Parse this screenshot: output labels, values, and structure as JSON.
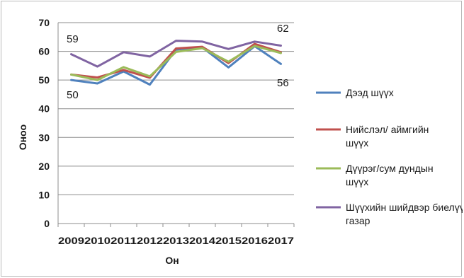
{
  "chart_data": {
    "type": "line",
    "title": "",
    "xlabel": "Он",
    "ylabel": "Оноо",
    "categories": [
      "2009",
      "2010",
      "2011",
      "2012",
      "2013",
      "2014",
      "2015",
      "2016",
      "2017"
    ],
    "ylim": [
      0,
      70
    ],
    "yticks": [
      "0",
      "10",
      "20",
      "30",
      "40",
      "50",
      "60",
      "70"
    ],
    "grid": true,
    "legend_position": "right",
    "series": [
      {
        "name": "Дээд шүүх",
        "color": "#4f81bd",
        "values": [
          50,
          48.8,
          53,
          48.4,
          60.6,
          61.4,
          54.4,
          61.8,
          55.6
        ]
      },
      {
        "name": "Нийслэл/ аймгийн шүүх",
        "color": "#c0504d",
        "values": [
          51.9,
          50.9,
          53.5,
          50.8,
          61,
          61.6,
          55.9,
          62.6,
          59.7
        ]
      },
      {
        "name": "Дүүрэг/сум дундын шүүх",
        "color": "#9bbb59",
        "values": [
          51.9,
          50,
          54.5,
          51.3,
          59.8,
          61.1,
          56.4,
          61.9,
          59.4
        ]
      },
      {
        "name": "Шүүхийн шийдвэр биелүүлэх газар",
        "color": "#8064a2",
        "values": [
          59,
          54.7,
          59.7,
          58.2,
          63.7,
          63.4,
          60.8,
          63.4,
          62
        ]
      }
    ],
    "annotations": [
      "59",
      "50",
      "62",
      "56"
    ]
  }
}
